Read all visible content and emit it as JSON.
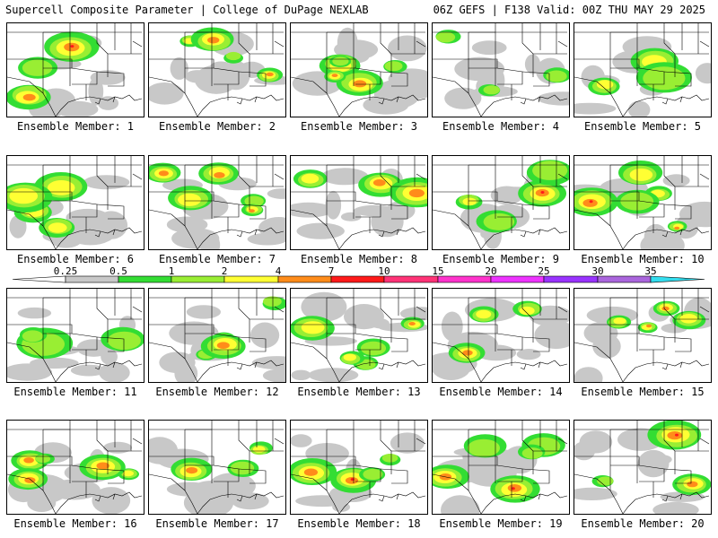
{
  "header": {
    "left_title": "Supercell Composite Parameter | College of DuPage NEXLAB",
    "right_title": "06Z GEFS | F138 Valid: 00Z THU MAY 29 2025"
  },
  "panels": [
    {
      "label": "Ensemble Member: 1"
    },
    {
      "label": "Ensemble Member: 2"
    },
    {
      "label": "Ensemble Member: 3"
    },
    {
      "label": "Ensemble Member: 4"
    },
    {
      "label": "Ensemble Member: 5"
    },
    {
      "label": "Ensemble Member: 6"
    },
    {
      "label": "Ensemble Member: 7"
    },
    {
      "label": "Ensemble Member: 8"
    },
    {
      "label": "Ensemble Member: 9"
    },
    {
      "label": "Ensemble Member: 10"
    },
    {
      "label": "Ensemble Member: 11"
    },
    {
      "label": "Ensemble Member: 12"
    },
    {
      "label": "Ensemble Member: 13"
    },
    {
      "label": "Ensemble Member: 14"
    },
    {
      "label": "Ensemble Member: 15"
    },
    {
      "label": "Ensemble Member: 16"
    },
    {
      "label": "Ensemble Member: 17"
    },
    {
      "label": "Ensemble Member: 18"
    },
    {
      "label": "Ensemble Member: 19"
    },
    {
      "label": "Ensemble Member: 20"
    }
  ],
  "colorbar": {
    "ticks": [
      "0.25",
      "0.5",
      "1",
      "2",
      "4",
      "7",
      "10",
      "15",
      "20",
      "25",
      "30",
      "35"
    ],
    "colors": [
      "#c8c8c8",
      "#33dd33",
      "#99ee33",
      "#ffff33",
      "#ff8c1a",
      "#ff1a1a",
      "#ff3377",
      "#ff33cc",
      "#ee33ff",
      "#9933ff",
      "#aa66dd",
      "#33ddee"
    ]
  }
}
